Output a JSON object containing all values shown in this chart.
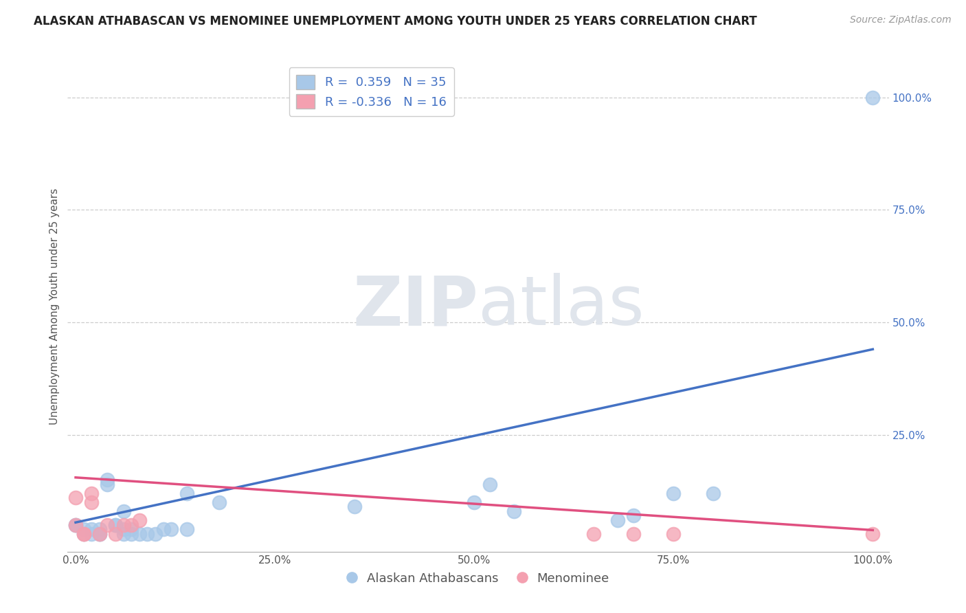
{
  "title": "ALASKAN ATHABASCAN VS MENOMINEE UNEMPLOYMENT AMONG YOUTH UNDER 25 YEARS CORRELATION CHART",
  "source": "Source: ZipAtlas.com",
  "ylabel": "Unemployment Among Youth under 25 years",
  "xlim": [
    -0.01,
    1.02
  ],
  "ylim": [
    -0.01,
    1.08
  ],
  "xtick_labels": [
    "0.0%",
    "25.0%",
    "50.0%",
    "75.0%",
    "100.0%"
  ],
  "xtick_vals": [
    0.0,
    0.25,
    0.5,
    0.75,
    1.0
  ],
  "ytick_labels": [
    "25.0%",
    "50.0%",
    "75.0%",
    "100.0%"
  ],
  "ytick_vals": [
    0.25,
    0.5,
    0.75,
    1.0
  ],
  "blue_r": 0.359,
  "blue_n": 35,
  "pink_r": -0.336,
  "pink_n": 16,
  "blue_color": "#A8C8E8",
  "pink_color": "#F4A0B0",
  "blue_line_color": "#4472C4",
  "pink_line_color": "#E05080",
  "watermark_zip": "ZIP",
  "watermark_atlas": "atlas",
  "legend_labels": [
    "Alaskan Athabascans",
    "Menominee"
  ],
  "blue_scatter_x": [
    0.0,
    0.0,
    0.01,
    0.01,
    0.02,
    0.02,
    0.03,
    0.03,
    0.03,
    0.04,
    0.04,
    0.05,
    0.05,
    0.06,
    0.06,
    0.06,
    0.07,
    0.07,
    0.08,
    0.09,
    0.1,
    0.11,
    0.12,
    0.14,
    0.14,
    0.18,
    0.35,
    0.5,
    0.52,
    0.55,
    0.68,
    0.7,
    0.75,
    0.8,
    1.0
  ],
  "blue_scatter_y": [
    0.05,
    0.05,
    0.03,
    0.04,
    0.03,
    0.04,
    0.03,
    0.03,
    0.04,
    0.14,
    0.15,
    0.05,
    0.05,
    0.03,
    0.04,
    0.08,
    0.03,
    0.04,
    0.03,
    0.03,
    0.03,
    0.04,
    0.04,
    0.04,
    0.12,
    0.1,
    0.09,
    0.1,
    0.14,
    0.08,
    0.06,
    0.07,
    0.12,
    0.12,
    1.0
  ],
  "pink_scatter_x": [
    0.0,
    0.0,
    0.01,
    0.01,
    0.02,
    0.02,
    0.03,
    0.04,
    0.05,
    0.06,
    0.07,
    0.08,
    0.65,
    0.7,
    0.75,
    1.0
  ],
  "pink_scatter_y": [
    0.11,
    0.05,
    0.03,
    0.03,
    0.12,
    0.1,
    0.03,
    0.05,
    0.03,
    0.05,
    0.05,
    0.06,
    0.03,
    0.03,
    0.03,
    0.03
  ],
  "blue_line_y_start": 0.055,
  "blue_line_y_end": 0.44,
  "pink_line_y_start": 0.155,
  "pink_line_y_end": 0.038,
  "grid_color": "#CCCCCC",
  "background_color": "#FFFFFF",
  "title_fontsize": 12,
  "axis_label_fontsize": 11,
  "tick_fontsize": 11,
  "legend_fontsize": 13,
  "source_fontsize": 10
}
